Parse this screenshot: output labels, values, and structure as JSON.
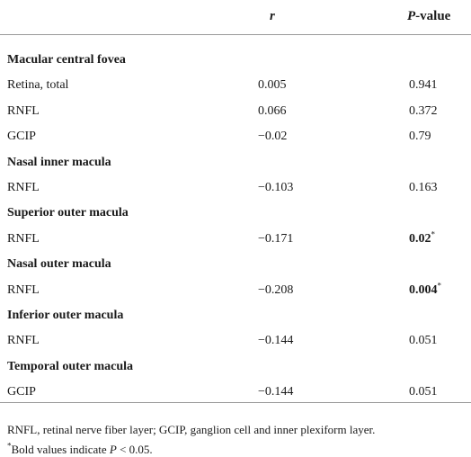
{
  "table": {
    "columns": [
      {
        "italic": "r"
      },
      {
        "italic": "P",
        "text": "-value"
      }
    ],
    "groups": [
      {
        "title": "Macular central fovea",
        "rows": [
          {
            "label": "Retina, total",
            "r": "0.005",
            "p": {
              "value": "0.941"
            }
          },
          {
            "label": "RNFL",
            "r": "0.066",
            "p": {
              "value": "0.372"
            }
          },
          {
            "label": "GCIP",
            "r": "−0.02",
            "p": {
              "value": "0.79"
            }
          }
        ]
      },
      {
        "title": "Nasal inner macula",
        "rows": [
          {
            "label": "RNFL",
            "r": "−0.103",
            "p": {
              "value": "0.163"
            }
          }
        ]
      },
      {
        "title": "Superior outer macula",
        "rows": [
          {
            "label": "RNFL",
            "r": "−0.171",
            "p": {
              "value": "0.02",
              "bold": true,
              "note": "*"
            }
          }
        ]
      },
      {
        "title": "Nasal outer macula",
        "rows": [
          {
            "label": "RNFL",
            "r": "−0.208",
            "p": {
              "value": "0.004",
              "bold": true,
              "note": "*"
            }
          }
        ]
      },
      {
        "title": "Inferior outer macula",
        "rows": [
          {
            "label": "RNFL",
            "r": "−0.144",
            "p": {
              "value": "0.051"
            }
          }
        ]
      },
      {
        "title": "Temporal outer macula",
        "rows": [
          {
            "label": "GCIP",
            "r": "−0.144",
            "p": {
              "value": "0.051"
            }
          }
        ]
      }
    ]
  },
  "footnotes": {
    "abbreviations": "RNFL, retinal nerve fiber layer; GCIP, ganglion cell and inner plexiform layer.",
    "bold_note": {
      "mark": "*",
      "text": "Bold values indicate ",
      "italic": "P",
      "rest": " < 0.05."
    }
  }
}
